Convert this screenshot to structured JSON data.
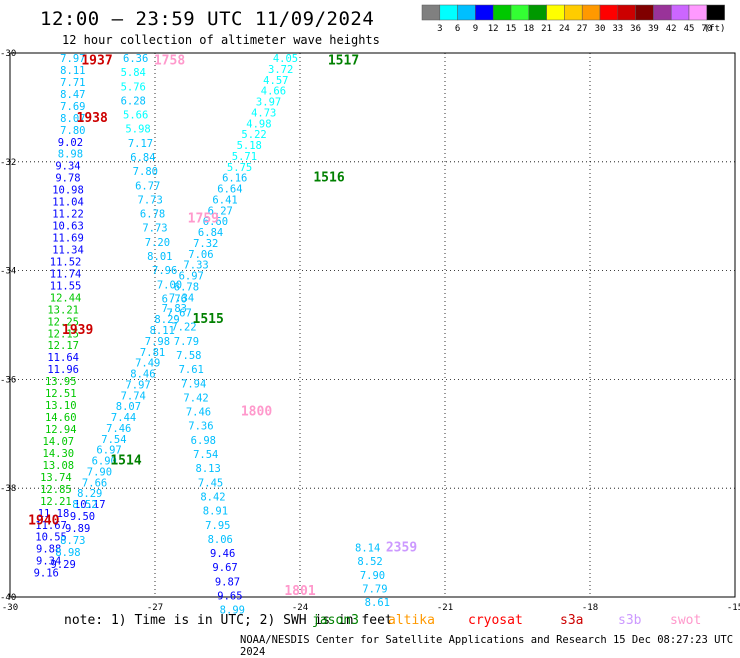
{
  "header": {
    "title": "12:00 – 23:59 UTC 11/09/2024",
    "subtitle": "12 hour collection of altimeter wave heights"
  },
  "colors": [
    "#808080",
    "#00ffff",
    "#00bfff",
    "#0000ff",
    "#00c800",
    "#33ff33",
    "#009900",
    "#ffff00",
    "#ffcc00",
    "#ff9900",
    "#ff0000",
    "#cc0000",
    "#800000",
    "#993399",
    "#cc66ff",
    "#ff99ff",
    "#000000"
  ],
  "legend": {
    "labels": [
      "3",
      "6",
      "9",
      "12",
      "15",
      "18",
      "21",
      "24",
      "27",
      "30",
      "33",
      "36",
      "39",
      "42",
      "45",
      "70",
      "(ft)"
    ]
  },
  "axes": {
    "lat_labels": [
      "-30",
      "-32",
      "-34",
      "-36",
      "-38",
      "-40"
    ],
    "lon_labels": [
      "-30",
      "-27",
      "-24",
      "-21",
      "-18",
      "-15"
    ]
  },
  "sources": [
    {
      "name": "jason3",
      "color": "#008000"
    },
    {
      "name": "altika",
      "color": "#ff9900"
    },
    {
      "name": "cryosat",
      "color": "#ff0000"
    },
    {
      "name": "s3a",
      "color": "#cc0000"
    },
    {
      "name": "s3b",
      "color": "#cc99ff"
    },
    {
      "name": "swot",
      "color": "#ff99cc"
    }
  ],
  "note": "note: 1) Time is in UTC; 2) SWH is in feet",
  "credit": "NOAA/NESDIS Center for Satellite Applications and Research   15 Dec 08:27:23 UTC 2024",
  "passes": [
    {
      "time": "1937",
      "color": "#cc0000",
      "lon": -28.2,
      "lat": -30.05
    },
    {
      "time": "1938",
      "color": "#cc0000",
      "lon": -28.3,
      "lat": -31.1
    },
    {
      "time": "1939",
      "color": "#cc0000",
      "lon": -28.6,
      "lat": -35.0
    },
    {
      "time": "1940",
      "color": "#cc0000",
      "lon": -29.3,
      "lat": -38.5
    },
    {
      "time": "1758",
      "color": "#ff99cc",
      "lon": -26.7,
      "lat": -30.05
    },
    {
      "time": "1759",
      "color": "#ff99cc",
      "lon": -26.0,
      "lat": -32.95
    },
    {
      "time": "1800",
      "color": "#ff99cc",
      "lon": -24.9,
      "lat": -36.5
    },
    {
      "time": "1801",
      "color": "#ff99cc",
      "lon": -24.0,
      "lat": -39.8
    },
    {
      "time": "1517",
      "color": "#008000",
      "lon": -23.1,
      "lat": -30.05
    },
    {
      "time": "1516",
      "color": "#008000",
      "lon": -23.4,
      "lat": -32.2
    },
    {
      "time": "1515",
      "color": "#008000",
      "lon": -25.9,
      "lat": -34.8
    },
    {
      "time": "1514",
      "color": "#008000",
      "lon": -27.6,
      "lat": -37.4
    },
    {
      "time": "2359",
      "color": "#cc99ff",
      "lon": -21.9,
      "lat": -39.0
    }
  ],
  "tracks": [
    {
      "id": "s3a",
      "points": [
        {
          "lon": -28.7,
          "lat": -30.0,
          "v": "7.97"
        },
        {
          "lon": -28.7,
          "lat": -30.22,
          "v": "8.11"
        },
        {
          "lon": -28.7,
          "lat": -30.44,
          "v": "7.71"
        },
        {
          "lon": -28.7,
          "lat": -30.66,
          "v": "8.47"
        },
        {
          "lon": -28.7,
          "lat": -30.88,
          "v": "7.69"
        },
        {
          "lon": -28.7,
          "lat": -31.1,
          "v": "8.07"
        },
        {
          "lon": -28.7,
          "lat": -31.32,
          "v": "7.80"
        },
        {
          "lon": -28.75,
          "lat": -31.54,
          "v": "9.02"
        },
        {
          "lon": -28.75,
          "lat": -31.76,
          "v": "8.98"
        },
        {
          "lon": -28.8,
          "lat": -31.98,
          "v": "9.34"
        },
        {
          "lon": -28.8,
          "lat": -32.2,
          "v": "9.78"
        },
        {
          "lon": -28.8,
          "lat": -32.42,
          "v": "10.98"
        },
        {
          "lon": -28.8,
          "lat": -32.64,
          "v": "11.04"
        },
        {
          "lon": -28.8,
          "lat": -32.86,
          "v": "11.22"
        },
        {
          "lon": -28.8,
          "lat": -33.08,
          "v": "10.63"
        },
        {
          "lon": -28.8,
          "lat": -33.3,
          "v": "11.69"
        },
        {
          "lon": -28.8,
          "lat": -33.52,
          "v": "11.34"
        },
        {
          "lon": -28.85,
          "lat": -33.74,
          "v": "11.52"
        },
        {
          "lon": -28.85,
          "lat": -33.96,
          "v": "11.74"
        },
        {
          "lon": -28.85,
          "lat": -34.18,
          "v": "11.55"
        },
        {
          "lon": -28.85,
          "lat": -34.4,
          "v": "12.44"
        },
        {
          "lon": -28.9,
          "lat": -34.62,
          "v": "13.21"
        },
        {
          "lon": -28.9,
          "lat": -34.84,
          "v": "12.25"
        },
        {
          "lon": -28.9,
          "lat": -35.06,
          "v": "12.15"
        },
        {
          "lon": -28.9,
          "lat": -35.28,
          "v": "12.17"
        },
        {
          "lon": -28.9,
          "lat": -35.5,
          "v": "11.64"
        },
        {
          "lon": -28.9,
          "lat": -35.72,
          "v": "11.96"
        },
        {
          "lon": -28.95,
          "lat": -35.94,
          "v": "13.95"
        },
        {
          "lon": -28.95,
          "lat": -36.16,
          "v": "12.51"
        },
        {
          "lon": -28.95,
          "lat": -36.38,
          "v": "13.10"
        },
        {
          "lon": -28.95,
          "lat": -36.6,
          "v": "14.60"
        },
        {
          "lon": -28.95,
          "lat": -36.82,
          "v": "12.94"
        },
        {
          "lon": -29.0,
          "lat": -37.04,
          "v": "14.07"
        },
        {
          "lon": -29.0,
          "lat": -37.26,
          "v": "14.30"
        },
        {
          "lon": -29.0,
          "lat": -37.48,
          "v": "13.08"
        },
        {
          "lon": -29.05,
          "lat": -37.7,
          "v": "13.74"
        },
        {
          "lon": -29.05,
          "lat": -37.92,
          "v": "12.85"
        },
        {
          "lon": -29.05,
          "lat": -38.14,
          "v": "12.21"
        },
        {
          "lon": -29.1,
          "lat": -38.36,
          "v": "11.18"
        },
        {
          "lon": -29.15,
          "lat": -38.58,
          "v": "11.67"
        },
        {
          "lon": -29.15,
          "lat": -38.8,
          "v": "10.55"
        },
        {
          "lon": -29.2,
          "lat": -39.02,
          "v": "9.88"
        },
        {
          "lon": -29.2,
          "lat": -39.24,
          "v": "9.34"
        },
        {
          "lon": -29.25,
          "lat": -39.46,
          "v": "9.16"
        }
      ]
    },
    {
      "id": "s3a-east",
      "points": [
        {
          "lon": -28.35,
          "lat": -38.2,
          "v": "10.17"
        },
        {
          "lon": -28.5,
          "lat": -38.42,
          "v": "9.50"
        },
        {
          "lon": -28.6,
          "lat": -38.64,
          "v": "9.89"
        },
        {
          "lon": -28.7,
          "lat": -38.86,
          "v": "8.73"
        },
        {
          "lon": -28.8,
          "lat": -39.08,
          "v": "8.98"
        },
        {
          "lon": -28.9,
          "lat": -39.3,
          "v": "9.29"
        }
      ]
    },
    {
      "id": "swot",
      "points": [
        {
          "lon": -27.4,
          "lat": -30.0,
          "v": "6.36"
        },
        {
          "lon": -27.45,
          "lat": -30.26,
          "v": "5.84"
        },
        {
          "lon": -27.45,
          "lat": -30.52,
          "v": "5.76"
        },
        {
          "lon": -27.45,
          "lat": -30.78,
          "v": "6.28"
        },
        {
          "lon": -27.4,
          "lat": -31.04,
          "v": "5.66"
        },
        {
          "lon": -27.35,
          "lat": -31.3,
          "v": "5.98"
        },
        {
          "lon": -27.3,
          "lat": -31.56,
          "v": "7.17"
        },
        {
          "lon": -27.25,
          "lat": -31.82,
          "v": "6.84"
        },
        {
          "lon": -27.2,
          "lat": -32.08,
          "v": "7.80"
        },
        {
          "lon": -27.15,
          "lat": -32.34,
          "v": "6.77"
        },
        {
          "lon": -27.1,
          "lat": -32.6,
          "v": "7.73"
        },
        {
          "lon": -27.05,
          "lat": -32.86,
          "v": "6.78"
        },
        {
          "lon": -27.0,
          "lat": -33.12,
          "v": "7.73"
        },
        {
          "lon": -26.95,
          "lat": -33.38,
          "v": "7.20"
        },
        {
          "lon": -26.9,
          "lat": -33.64,
          "v": "8.01"
        },
        {
          "lon": -26.8,
          "lat": -33.9,
          "v": "7.96"
        },
        {
          "lon": -26.7,
          "lat": -34.16,
          "v": "7.00"
        },
        {
          "lon": -26.6,
          "lat": -34.42,
          "v": "6.76"
        },
        {
          "lon": -26.5,
          "lat": -34.68,
          "v": "7.67"
        },
        {
          "lon": -26.4,
          "lat": -34.94,
          "v": "7.22"
        },
        {
          "lon": -26.35,
          "lat": -35.2,
          "v": "7.79"
        },
        {
          "lon": -26.3,
          "lat": -35.46,
          "v": "7.58"
        },
        {
          "lon": -26.25,
          "lat": -35.72,
          "v": "7.61"
        },
        {
          "lon": -26.2,
          "lat": -35.98,
          "v": "7.94"
        },
        {
          "lon": -26.15,
          "lat": -36.24,
          "v": "7.42"
        },
        {
          "lon": -26.1,
          "lat": -36.5,
          "v": "7.46"
        },
        {
          "lon": -26.05,
          "lat": -36.76,
          "v": "7.36"
        },
        {
          "lon": -26.0,
          "lat": -37.02,
          "v": "6.98"
        },
        {
          "lon": -25.95,
          "lat": -37.28,
          "v": "7.54"
        },
        {
          "lon": -25.9,
          "lat": -37.54,
          "v": "8.13"
        },
        {
          "lon": -25.85,
          "lat": -37.8,
          "v": "7.45"
        },
        {
          "lon": -25.8,
          "lat": -38.06,
          "v": "8.42"
        },
        {
          "lon": -25.75,
          "lat": -38.32,
          "v": "8.91"
        },
        {
          "lon": -25.7,
          "lat": -38.58,
          "v": "7.95"
        },
        {
          "lon": -25.65,
          "lat": -38.84,
          "v": "8.06"
        },
        {
          "lon": -25.6,
          "lat": -39.1,
          "v": "9.46"
        },
        {
          "lon": -25.55,
          "lat": -39.36,
          "v": "9.67"
        },
        {
          "lon": -25.5,
          "lat": -39.62,
          "v": "9.87"
        },
        {
          "lon": -25.45,
          "lat": -39.88,
          "v": "9.65"
        },
        {
          "lon": -25.4,
          "lat": -40.14,
          "v": "8.99"
        }
      ]
    },
    {
      "id": "jason3",
      "points": [
        {
          "lon": -24.3,
          "lat": -30.0,
          "v": "4.05"
        },
        {
          "lon": -24.4,
          "lat": -30.2,
          "v": "3.72"
        },
        {
          "lon": -24.5,
          "lat": -30.4,
          "v": "4.57"
        },
        {
          "lon": -24.55,
          "lat": -30.6,
          "v": "4.66"
        },
        {
          "lon": -24.65,
          "lat": -30.8,
          "v": "3.97"
        },
        {
          "lon": -24.75,
          "lat": -31.0,
          "v": "4.73"
        },
        {
          "lon": -24.85,
          "lat": -31.2,
          "v": "4.98"
        },
        {
          "lon": -24.95,
          "lat": -31.4,
          "v": "5.22"
        },
        {
          "lon": -25.05,
          "lat": -31.6,
          "v": "5.18"
        },
        {
          "lon": -25.15,
          "lat": -31.8,
          "v": "5.71"
        },
        {
          "lon": -25.25,
          "lat": -32.0,
          "v": "5.75"
        },
        {
          "lon": -25.35,
          "lat": -32.2,
          "v": "6.16"
        },
        {
          "lon": -25.45,
          "lat": -32.4,
          "v": "6.64"
        },
        {
          "lon": -25.55,
          "lat": -32.6,
          "v": "6.41"
        },
        {
          "lon": -25.65,
          "lat": -32.8,
          "v": "6.27"
        },
        {
          "lon": -25.75,
          "lat": -33.0,
          "v": "6.60"
        },
        {
          "lon": -25.85,
          "lat": -33.2,
          "v": "6.84"
        },
        {
          "lon": -25.95,
          "lat": -33.4,
          "v": "7.32"
        },
        {
          "lon": -26.05,
          "lat": -33.6,
          "v": "7.06"
        },
        {
          "lon": -26.15,
          "lat": -33.8,
          "v": "7.33"
        },
        {
          "lon": -26.25,
          "lat": -34.0,
          "v": "6.97"
        },
        {
          "lon": -26.35,
          "lat": -34.2,
          "v": "6.78"
        },
        {
          "lon": -26.45,
          "lat": -34.4,
          "v": "7.34"
        },
        {
          "lon": -26.6,
          "lat": -34.6,
          "v": "7.83"
        },
        {
          "lon": -26.75,
          "lat": -34.8,
          "v": "8.29"
        },
        {
          "lon": -26.85,
          "lat": -35.0,
          "v": "8.11"
        },
        {
          "lon": -26.95,
          "lat": -35.2,
          "v": "7.98"
        },
        {
          "lon": -27.05,
          "lat": -35.4,
          "v": "7.81"
        },
        {
          "lon": -27.15,
          "lat": -35.6,
          "v": "7.49"
        },
        {
          "lon": -27.25,
          "lat": -35.8,
          "v": "8.46"
        },
        {
          "lon": -27.35,
          "lat": -36.0,
          "v": "7.97"
        },
        {
          "lon": -27.45,
          "lat": -36.2,
          "v": "7.74"
        },
        {
          "lon": -27.55,
          "lat": -36.4,
          "v": "8.07"
        },
        {
          "lon": -27.65,
          "lat": -36.6,
          "v": "7.44"
        },
        {
          "lon": -27.75,
          "lat": -36.8,
          "v": "7.46"
        },
        {
          "lon": -27.85,
          "lat": -37.0,
          "v": "7.54"
        },
        {
          "lon": -27.95,
          "lat": -37.2,
          "v": "6.97"
        },
        {
          "lon": -28.05,
          "lat": -37.4,
          "v": "6.90"
        },
        {
          "lon": -28.15,
          "lat": -37.6,
          "v": "7.90"
        },
        {
          "lon": -28.25,
          "lat": -37.8,
          "v": "7.66"
        },
        {
          "lon": -28.35,
          "lat": -38.0,
          "v": "8.29"
        },
        {
          "lon": -28.45,
          "lat": -38.2,
          "v": "8.52"
        }
      ]
    },
    {
      "id": "s3b",
      "points": [
        {
          "lon": -22.6,
          "lat": -39.0,
          "v": "8.14"
        },
        {
          "lon": -22.55,
          "lat": -39.25,
          "v": "8.52"
        },
        {
          "lon": -22.5,
          "lat": -39.5,
          "v": "7.90"
        },
        {
          "lon": -22.45,
          "lat": -39.75,
          "v": "7.79"
        },
        {
          "lon": -22.4,
          "lat": -40.0,
          "v": "8.61"
        }
      ]
    }
  ]
}
